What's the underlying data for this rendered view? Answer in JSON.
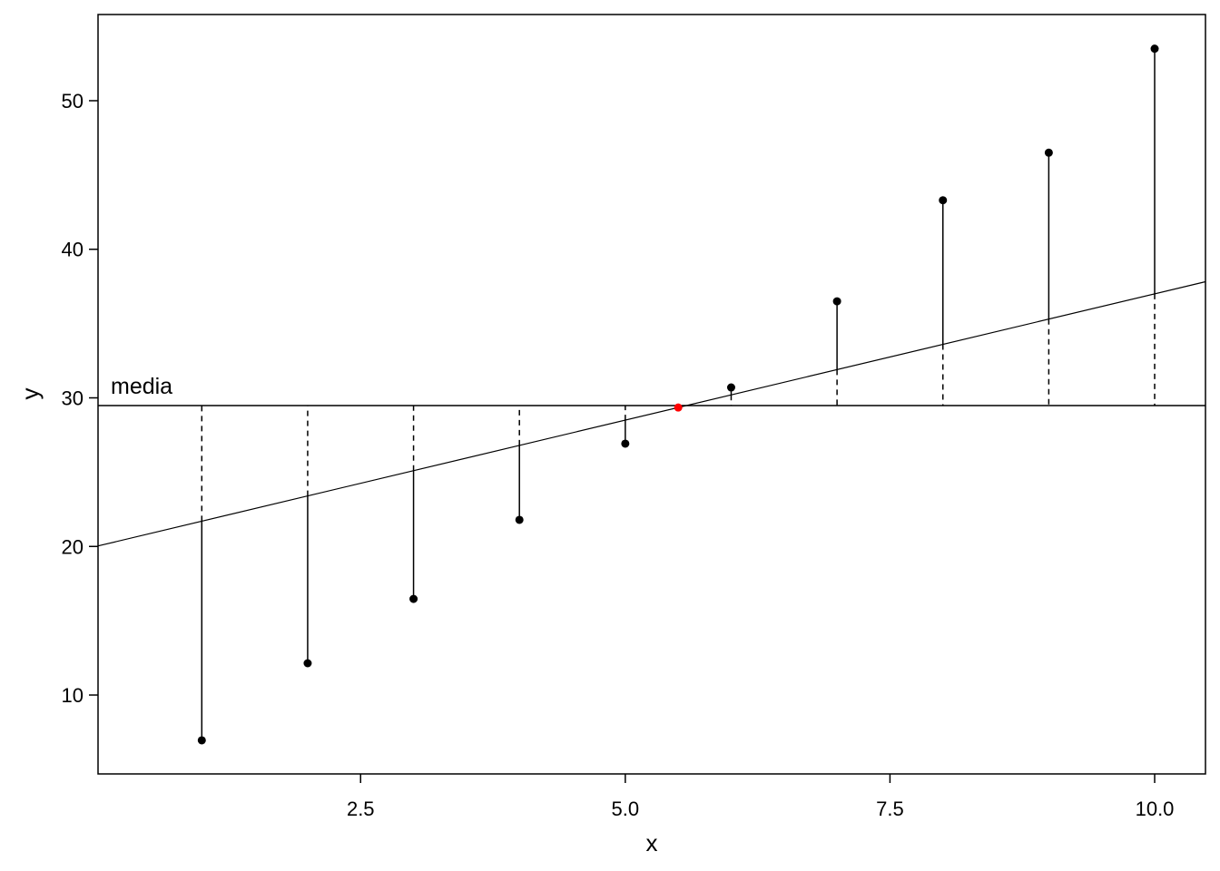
{
  "chart_data": {
    "type": "scatter",
    "title": "",
    "xlabel": "x",
    "ylabel": "y",
    "xlim": [
      0.02,
      10.48
    ],
    "ylim": [
      4.69,
      55.8
    ],
    "x_ticks": [
      2.5,
      5.0,
      7.5,
      10.0
    ],
    "x_tick_labels": [
      "2.5",
      "5.0",
      "7.5",
      "10.0"
    ],
    "y_ticks": [
      10,
      20,
      30,
      40,
      50
    ],
    "y_tick_labels": [
      "10",
      "20",
      "30",
      "40",
      "50"
    ],
    "grid": false,
    "points": {
      "x": [
        1,
        2,
        3,
        4,
        5,
        6,
        7,
        8,
        9,
        10
      ],
      "y": [
        6.95,
        12.14,
        16.47,
        21.79,
        26.92,
        30.7,
        36.5,
        43.3,
        46.5,
        53.5
      ],
      "color": "#000000"
    },
    "mean_line": {
      "y": 29.48,
      "label": "media"
    },
    "fitted_line": {
      "intercept": 20.0,
      "slope": 1.7
    },
    "highlight_point": {
      "x": 5.5,
      "y": 29.35,
      "color": "#ff0000"
    },
    "residual_segments": "solid from point to fitted line, dashed from fitted line to mean"
  }
}
